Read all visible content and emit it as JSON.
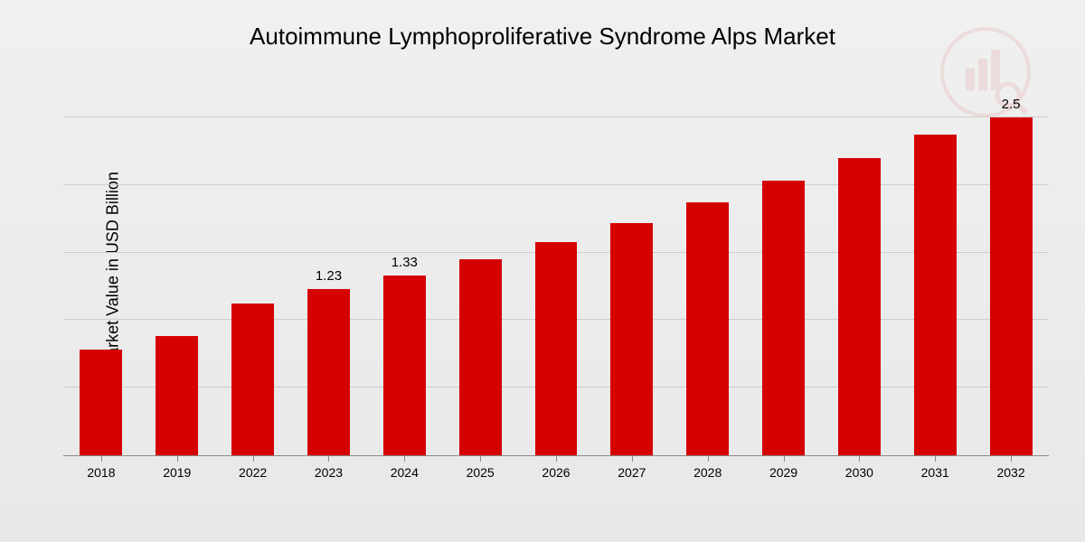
{
  "chart": {
    "type": "bar",
    "title": "Autoimmune Lymphoproliferative Syndrome Alps Market",
    "title_fontsize": 26,
    "ylabel": "Market Value in USD Billion",
    "ylabel_fontsize": 18,
    "background_gradient_top": "#f0f0f0",
    "background_gradient_bottom": "#e8e8e8",
    "bar_color": "#d50000",
    "grid_color": "#cccccc",
    "axis_color": "#888888",
    "ylim": [
      0,
      2.8
    ],
    "gridlines_y": [
      0.5,
      1.0,
      1.5,
      2.0,
      2.5
    ],
    "bar_width_pct": 56,
    "categories": [
      "2018",
      "2019",
      "2022",
      "2023",
      "2024",
      "2025",
      "2026",
      "2027",
      "2028",
      "2029",
      "2030",
      "2031",
      "2032"
    ],
    "values": [
      0.78,
      0.88,
      1.12,
      1.23,
      1.33,
      1.45,
      1.58,
      1.72,
      1.87,
      2.03,
      2.2,
      2.37,
      2.5
    ],
    "value_labels": {
      "3": "1.23",
      "4": "1.33",
      "12": "2.5"
    },
    "value_label_fontsize": 15,
    "x_tick_fontsize": 14
  }
}
